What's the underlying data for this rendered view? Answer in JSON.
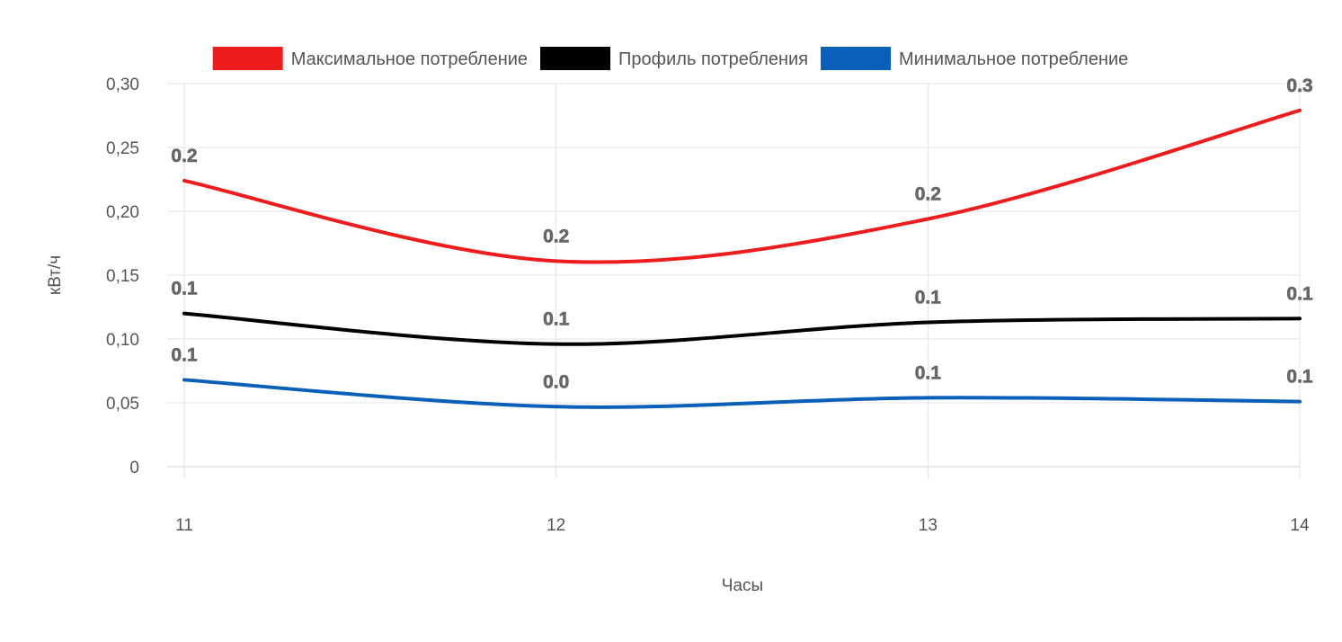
{
  "chart_data": {
    "type": "line",
    "title": "",
    "xlabel": "Часы",
    "ylabel": "кВт/ч",
    "categories": [
      "11",
      "12",
      "13",
      "14"
    ],
    "ylim": [
      0,
      0.3
    ],
    "yticks": [
      0,
      0.05,
      0.1,
      0.15,
      0.2,
      0.25,
      0.3
    ],
    "ytick_labels": [
      "0",
      "0,05",
      "0,10",
      "0,15",
      "0,20",
      "0,25",
      "0,30"
    ],
    "grid": true,
    "smooth": true,
    "legend_position": "top",
    "series": [
      {
        "name": "Максимальное потребление",
        "color": "#ee1c1c",
        "values": [
          0.224,
          0.161,
          0.194,
          0.279
        ],
        "labels": [
          "0.2",
          "0.2",
          "0.2",
          "0.3"
        ]
      },
      {
        "name": "Профиль потребления",
        "color": "#000000",
        "values": [
          0.12,
          0.096,
          0.113,
          0.116
        ],
        "labels": [
          "0.1",
          "0.1",
          "0.1",
          "0.1"
        ]
      },
      {
        "name": "Минимальное потребление",
        "color": "#0a5fb8",
        "values": [
          0.068,
          0.047,
          0.054,
          0.051
        ],
        "labels": [
          "0.1",
          "0.0",
          "0.1",
          "0.1"
        ]
      }
    ]
  }
}
